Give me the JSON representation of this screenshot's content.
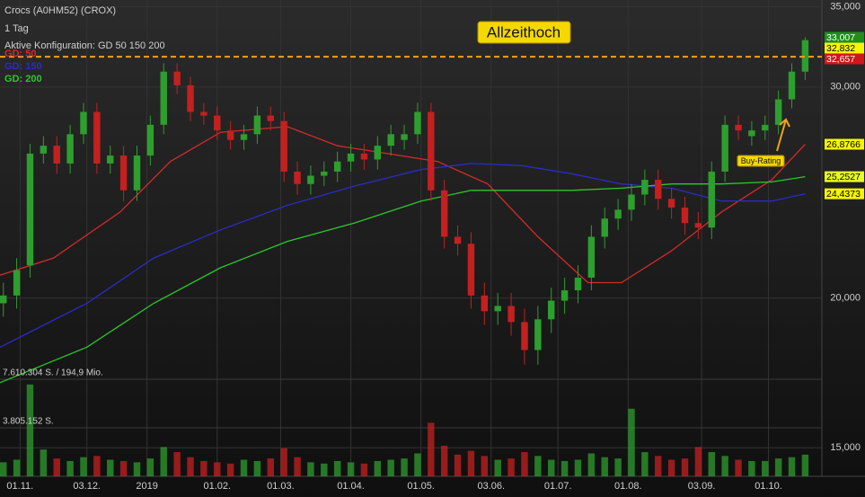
{
  "chart_data": {
    "type": "candlestick",
    "title": "Crocs (A0HM52) (CROX)",
    "subtitle": "1 Tag",
    "configuration": "Aktive Konfiguration: GD 50 150 200",
    "log_scale": true,
    "grid": true,
    "up_color": "#2e9e2e",
    "down_color": "#c42020",
    "x": [
      -5,
      -1,
      3,
      7,
      11,
      15,
      19,
      23,
      27,
      31,
      35,
      39,
      43,
      47,
      51,
      55,
      59,
      63,
      67,
      71,
      75,
      79,
      83,
      87,
      91,
      95,
      99,
      103,
      107,
      111,
      115,
      119,
      123,
      127,
      131,
      135,
      139,
      143,
      147,
      151,
      155,
      159,
      163,
      167,
      171,
      175,
      179,
      183,
      187,
      191,
      195,
      199,
      203,
      207,
      211,
      215,
      219,
      223,
      227,
      231,
      235
    ],
    "open": [
      19.8,
      20.1,
      21.3,
      26.4,
      26.8,
      25.9,
      27.4,
      28.6,
      25.9,
      26.3,
      24.6,
      26.3,
      27.9,
      30.9,
      30.1,
      28.6,
      28.4,
      27.6,
      27.1,
      27.4,
      28.4,
      28.1,
      25.5,
      24.9,
      25.3,
      25.5,
      26.0,
      26.4,
      26.1,
      26.8,
      27.1,
      27.4,
      28.6,
      24.6,
      22.5,
      22.2,
      20.1,
      19.5,
      19.7,
      19.1,
      18.1,
      19.2,
      19.9,
      20.3,
      20.8,
      22.5,
      23.3,
      23.7,
      24.4,
      25.1,
      24.2,
      23.8,
      23.1,
      22.9,
      25.5,
      27.9,
      27.3,
      27.6,
      27.9,
      29.3,
      30.9
    ],
    "high": [
      20.6,
      21.6,
      26.9,
      27.3,
      27.3,
      27.9,
      29.1,
      29.1,
      26.8,
      26.8,
      26.8,
      28.4,
      31.4,
      31.4,
      30.6,
      29.1,
      28.9,
      28.1,
      27.9,
      28.9,
      28.9,
      28.6,
      26.0,
      25.8,
      26.0,
      26.5,
      26.9,
      26.9,
      27.3,
      27.9,
      27.9,
      29.1,
      29.1,
      25.1,
      23.0,
      22.7,
      20.6,
      20.2,
      20.2,
      19.6,
      19.7,
      20.4,
      20.8,
      21.3,
      23.0,
      23.8,
      24.2,
      24.9,
      25.6,
      25.6,
      24.7,
      24.3,
      23.6,
      26.0,
      28.4,
      28.4,
      28.1,
      28.4,
      29.8,
      31.4,
      33.01
    ],
    "low": [
      19.3,
      19.6,
      20.8,
      25.9,
      25.4,
      25.4,
      26.9,
      25.4,
      25.4,
      24.1,
      24.1,
      25.8,
      27.4,
      29.6,
      28.1,
      27.9,
      27.1,
      26.6,
      26.6,
      26.9,
      27.6,
      25.0,
      24.4,
      24.4,
      24.8,
      25.0,
      25.5,
      25.6,
      25.6,
      26.3,
      26.6,
      26.9,
      24.1,
      22.0,
      21.7,
      19.6,
      19.0,
      19.0,
      18.6,
      17.6,
      17.6,
      18.7,
      19.4,
      19.8,
      20.3,
      22.0,
      22.8,
      23.2,
      23.9,
      23.7,
      23.3,
      22.6,
      22.4,
      22.4,
      25.0,
      27.1,
      26.8,
      27.1,
      27.4,
      28.8,
      30.4
    ],
    "close": [
      20.1,
      21.1,
      26.4,
      26.8,
      25.9,
      27.4,
      28.6,
      25.9,
      26.3,
      24.6,
      26.3,
      27.9,
      30.9,
      30.1,
      28.6,
      28.4,
      27.6,
      27.1,
      27.4,
      28.4,
      28.1,
      25.5,
      24.9,
      25.3,
      25.5,
      26.0,
      26.4,
      26.1,
      26.8,
      27.4,
      27.4,
      28.6,
      24.6,
      22.5,
      22.2,
      20.1,
      19.5,
      19.7,
      19.1,
      18.1,
      19.2,
      19.9,
      20.3,
      20.8,
      22.5,
      23.3,
      23.7,
      24.4,
      25.1,
      24.2,
      23.8,
      23.1,
      22.9,
      25.5,
      27.9,
      27.6,
      27.6,
      27.9,
      29.3,
      30.9,
      32.83
    ],
    "volume": [
      1100000,
      1300000,
      7200000,
      2100000,
      1400000,
      1200000,
      1500000,
      1600000,
      1300000,
      1200000,
      1100000,
      1400000,
      2300000,
      1900000,
      1500000,
      1200000,
      1100000,
      1000000,
      1300000,
      1200000,
      1400000,
      2200000,
      1500000,
      1100000,
      1000000,
      1200000,
      1100000,
      1000000,
      1200000,
      1300000,
      1400000,
      1800000,
      4200000,
      2400000,
      1700000,
      2000000,
      1600000,
      1300000,
      1400000,
      1900000,
      1600000,
      1300000,
      1200000,
      1300000,
      1800000,
      1500000,
      1400000,
      5300000,
      1900000,
      1600000,
      1300000,
      1400000,
      2300000,
      1900000,
      1600000,
      1300000,
      1200000,
      1200000,
      1400000,
      1500000,
      1700000
    ],
    "xlim": [
      -6,
      240
    ],
    "xticks": [
      {
        "value": 0,
        "label": "01.11."
      },
      {
        "value": 20,
        "label": "03.12."
      },
      {
        "value": 38,
        "label": "2019"
      },
      {
        "value": 59,
        "label": "01.02."
      },
      {
        "value": 78,
        "label": "01.03."
      },
      {
        "value": 99,
        "label": "01.04."
      },
      {
        "value": 120,
        "label": "01.05."
      },
      {
        "value": 141,
        "label": "03.06."
      },
      {
        "value": 161,
        "label": "01.07."
      },
      {
        "value": 182,
        "label": "01.08."
      },
      {
        "value": 204,
        "label": "03.09."
      },
      {
        "value": 224,
        "label": "01.10."
      }
    ],
    "ylim": [
      14.2,
      35.46
    ],
    "yticks": [
      {
        "value": 35,
        "label": "35,000"
      },
      {
        "value": 30,
        "label": "30,000"
      },
      {
        "value": 20,
        "label": "20,000"
      },
      {
        "value": 15,
        "label": "15,000"
      }
    ],
    "volume_lim": [
      0,
      7610304
    ],
    "volume_ticks": [
      {
        "value": 7610304,
        "label": "7.610.304 S. / 194,9 Mio."
      },
      {
        "value": 3805152,
        "label": "3.805.152 S."
      }
    ],
    "series": [
      {
        "name": "GD: 50",
        "color": "#d42a2a",
        "x": [
          -6,
          10,
          30,
          45,
          60,
          80,
          95,
          110,
          125,
          140,
          155,
          170,
          180,
          195,
          210,
          225,
          235
        ],
        "values": [
          20.9,
          21.6,
          23.6,
          26.0,
          27.5,
          27.8,
          26.8,
          26.4,
          26.0,
          24.9,
          22.5,
          20.6,
          20.6,
          21.9,
          23.6,
          25.1,
          26.8766
        ]
      },
      {
        "name": "GD: 150",
        "color": "#2b2bc8",
        "x": [
          -6,
          20,
          40,
          60,
          80,
          100,
          120,
          135,
          150,
          165,
          180,
          195,
          210,
          225,
          235
        ],
        "values": [
          18.2,
          19.8,
          21.6,
          22.8,
          23.9,
          24.8,
          25.6,
          25.9,
          25.8,
          25.4,
          24.9,
          24.7,
          24.1,
          24.1,
          24.4373
        ]
      },
      {
        "name": "GD: 200",
        "color": "#2bc82b",
        "x": [
          -6,
          20,
          40,
          60,
          80,
          100,
          120,
          135,
          150,
          165,
          180,
          195,
          210,
          225,
          235
        ],
        "values": [
          17.0,
          18.2,
          19.8,
          21.2,
          22.3,
          23.1,
          24.1,
          24.6,
          24.6,
          24.6,
          24.7,
          24.9,
          24.9,
          25.0,
          25.2527
        ]
      }
    ],
    "price_labels": [
      {
        "value": 33.007,
        "label": "33,007",
        "color": "#1d8f1d",
        "text_color": "#ffffff"
      },
      {
        "value": 32.832,
        "label": "32,832",
        "color": "#f5f500",
        "text_color": "#000000"
      },
      {
        "value": 32.657,
        "label": "32,657",
        "color": "#d01818",
        "text_color": "#ffffff"
      },
      {
        "value": 26.8766,
        "label": "26,8766",
        "color": "#f5f500",
        "text_color": "#000000"
      },
      {
        "value": 25.2527,
        "label": "25,2527",
        "color": "#e8ff20",
        "text_color": "#000000"
      },
      {
        "value": 24.4373,
        "label": "24,4373",
        "color": "#f5f500",
        "text_color": "#000000"
      }
    ],
    "ath_line": {
      "value": 31.8,
      "color": "#f0a020"
    },
    "annotations": [
      {
        "text": "Allzeithoch"
      },
      {
        "text": "Buy-Rating"
      }
    ]
  }
}
